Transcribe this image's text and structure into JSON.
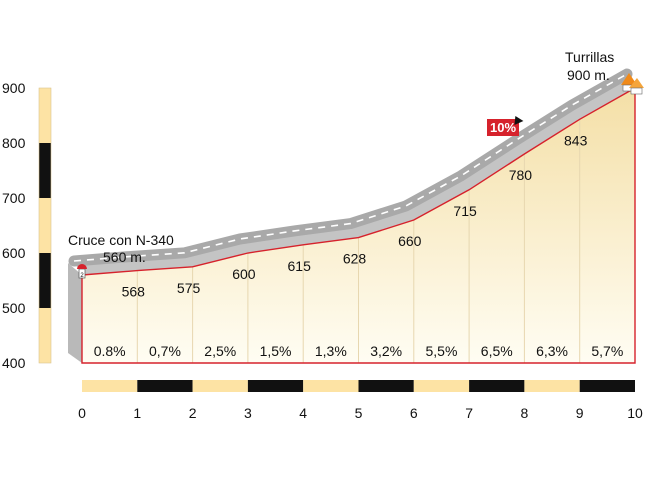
{
  "chart_data": {
    "type": "area",
    "title": "",
    "xlabel": "",
    "ylabel": "",
    "xlim": [
      0,
      10
    ],
    "ylim": [
      400,
      900
    ],
    "x_ticks": [
      "0",
      "1",
      "2",
      "3",
      "4",
      "5",
      "6",
      "7",
      "8",
      "9",
      "10"
    ],
    "y_ticks": [
      "400",
      "500",
      "600",
      "700",
      "800",
      "900"
    ],
    "x": [
      0,
      1,
      2,
      3,
      4,
      5,
      6,
      7,
      8,
      9,
      10
    ],
    "elevations": [
      560,
      568,
      575,
      600,
      615,
      628,
      660,
      715,
      780,
      843,
      900
    ],
    "point_labels": [
      "568",
      "575",
      "600",
      "615",
      "628",
      "660",
      "715",
      "780",
      "843"
    ],
    "segment_gradients": [
      "0.8%",
      "0,7%",
      "2,5%",
      "1,5%",
      "1,3%",
      "3,2%",
      "5,5%",
      "6,5%",
      "6,3%",
      "5,7%"
    ],
    "start": {
      "name": "Cruce con N-340",
      "elevation_label": "560 m."
    },
    "end": {
      "name": "Turrillas",
      "elevation_label": "900 m."
    },
    "max_gradient": {
      "label": "10%",
      "at_km": 8
    },
    "start_marker_text": "2",
    "colors": {
      "fill_top": "#f4dfa6",
      "fill_bottom": "#fffdf3",
      "profile_line": "#d6222c",
      "road": "#a9a9a9",
      "road_dash": "#ffffff",
      "bar_light": "#fde3a4",
      "bar_dark": "#111111",
      "badge": "#d6222c"
    }
  }
}
